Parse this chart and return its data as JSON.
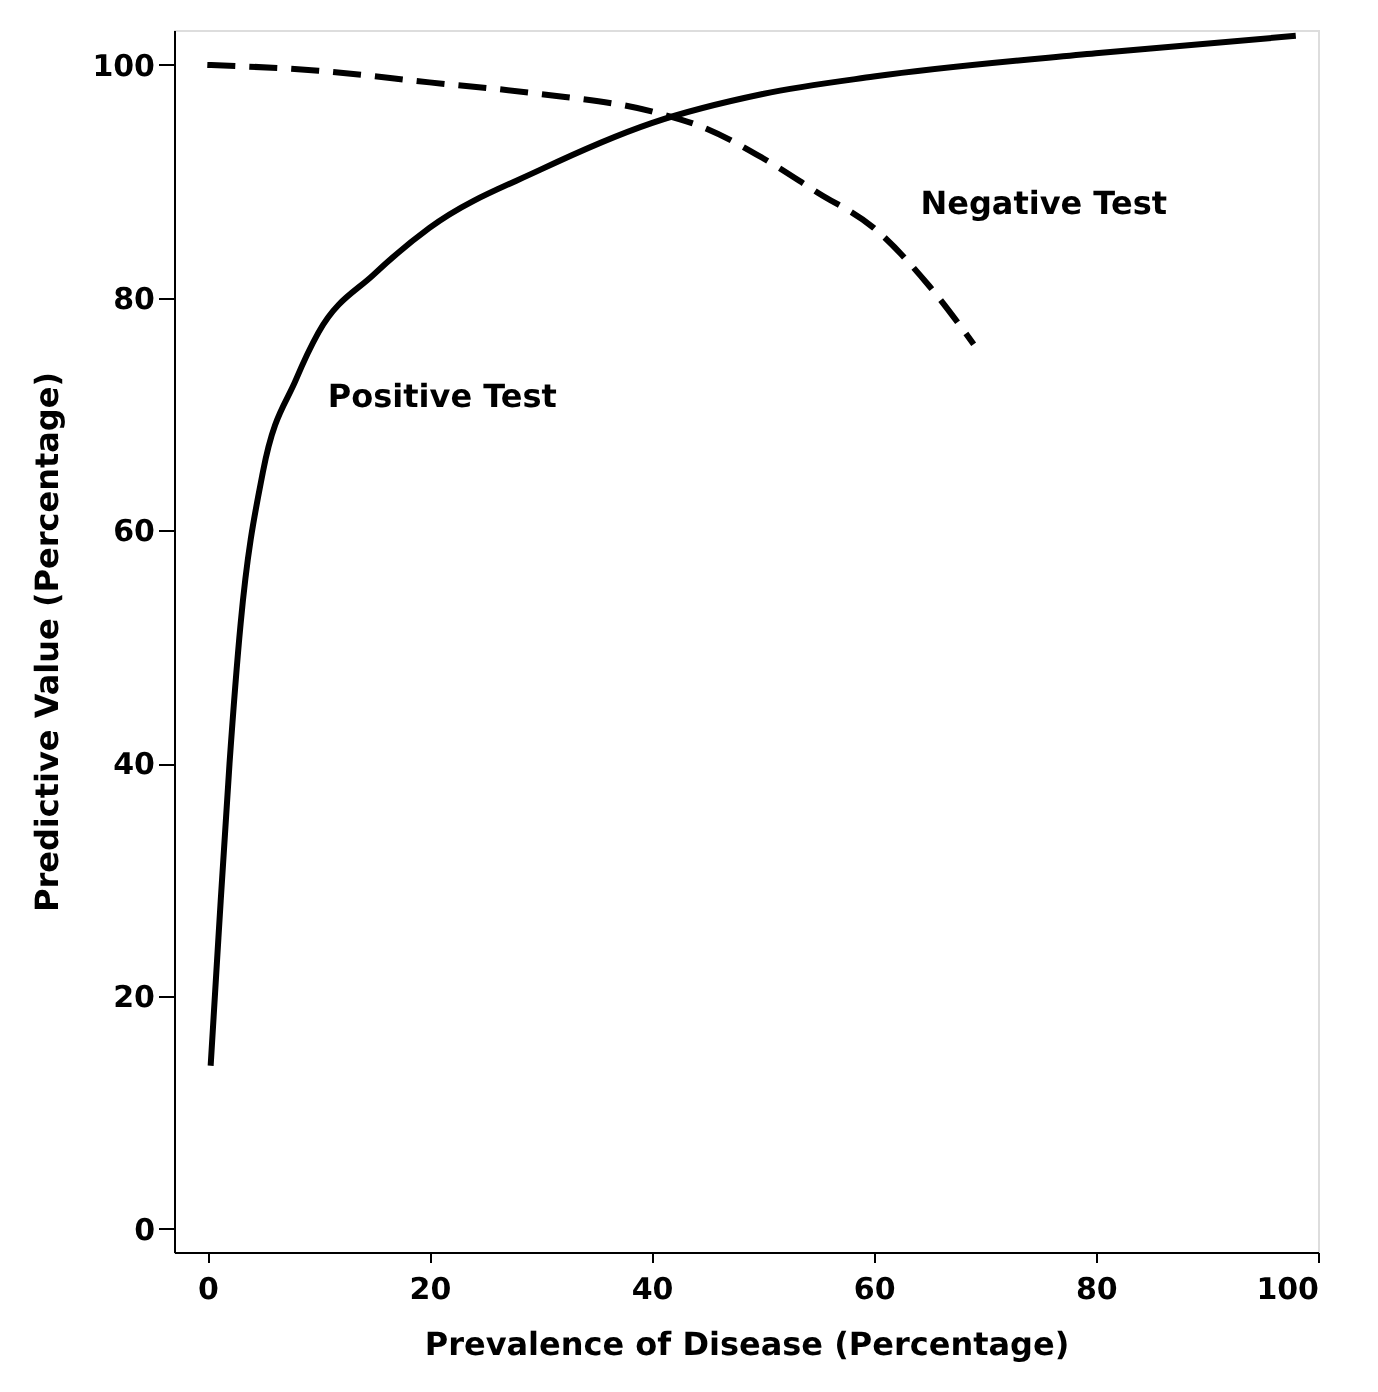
{
  "chart_data": {
    "type": "line",
    "xlabel": "Prevalence of Disease (Percentage)",
    "ylabel": "Predictive Value (Percentage)",
    "xlim": [
      -3,
      100
    ],
    "ylim": [
      -2,
      103
    ],
    "xticks": [
      0,
      20,
      40,
      60,
      80,
      100
    ],
    "yticks": [
      0,
      20,
      40,
      60,
      80,
      100
    ],
    "grid": false,
    "marker": "none",
    "series": [
      {
        "name": "Positive Test",
        "color": "#000000",
        "line_style": "solid",
        "x": [
          0.3,
          1,
          2,
          3,
          5,
          8,
          10,
          15,
          20,
          30,
          40,
          50,
          60,
          80,
          98
        ],
        "values": [
          14,
          25,
          40,
          52,
          65,
          73,
          77,
          82,
          86,
          91,
          95,
          97.5,
          99,
          101,
          102.5
        ]
      },
      {
        "name": "Negative Test",
        "color": "#000000",
        "line_style": "dashed",
        "x": [
          0,
          10,
          20,
          30,
          40,
          45,
          50,
          55,
          60,
          65,
          69
        ],
        "values": [
          100,
          99.5,
          98.5,
          97.5,
          96,
          94.5,
          92,
          89,
          86,
          81,
          76
        ]
      }
    ]
  }
}
